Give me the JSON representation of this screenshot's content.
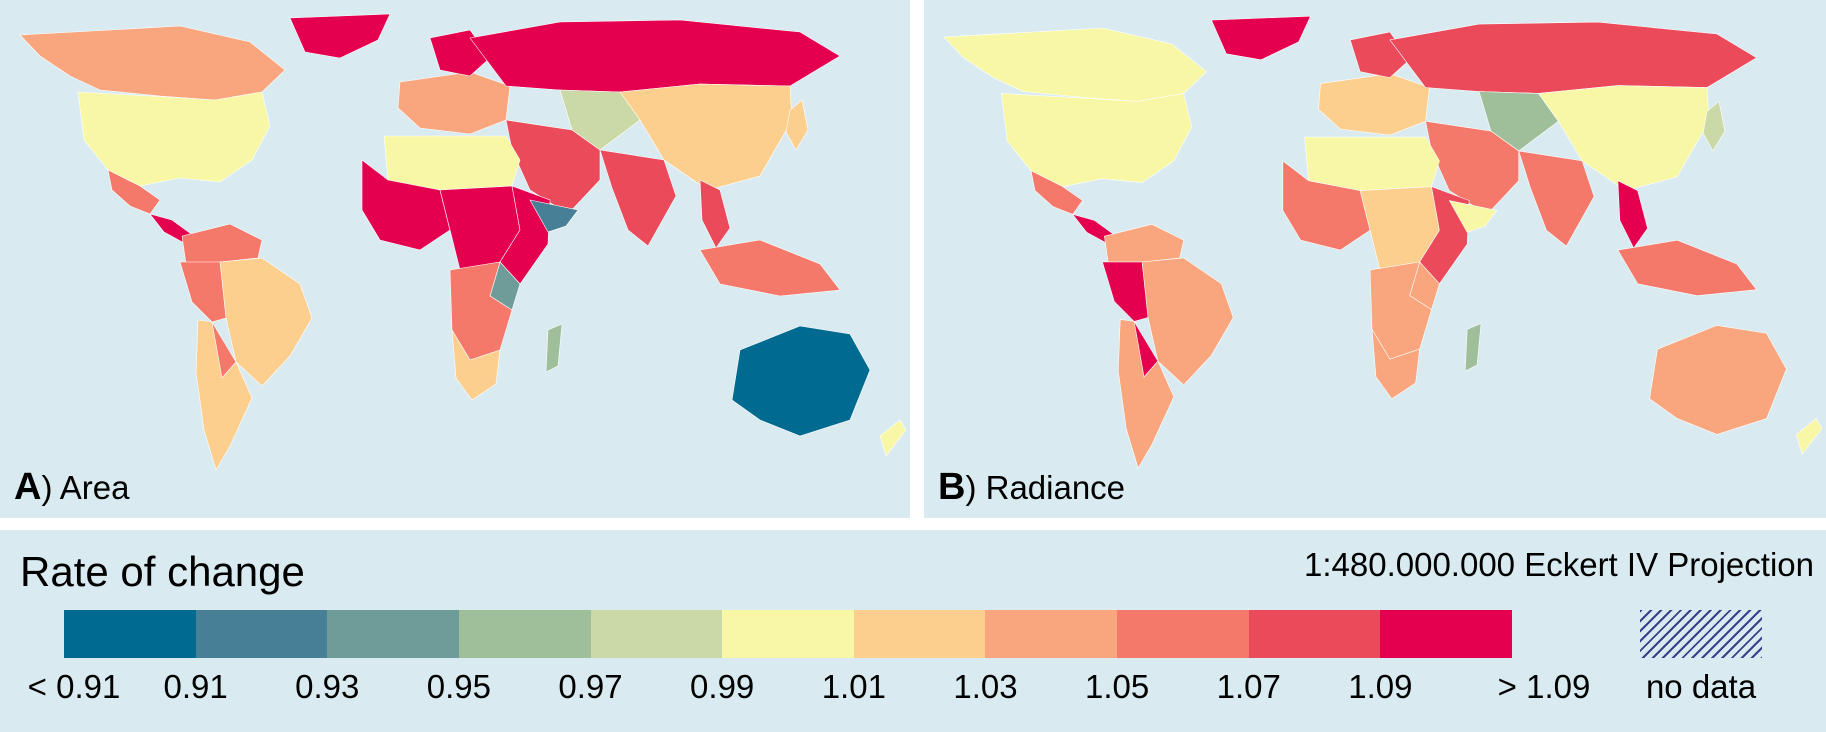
{
  "panels": [
    {
      "letter": "A",
      "title": ") Area",
      "region_classes": {
        "north_america_north": 7,
        "usa": 5,
        "mexico": 8,
        "central_america": 10,
        "greenland": 10,
        "south_america_north": 8,
        "brazil": 6,
        "peru": 8,
        "bolivia": 8,
        "chile_argentina": 6,
        "europe": 7,
        "scandinavia": 10,
        "russia": 10,
        "central_asia": 4,
        "middle_east": 9,
        "india": 9,
        "china": 6,
        "southeast_asia": 9,
        "indonesia": 8,
        "north_africa": 5,
        "west_africa": 10,
        "central_africa": 10,
        "east_africa": 10,
        "horn": 1,
        "southern_africa": 8,
        "south_africa": 6,
        "madagascar": 3,
        "tanzania": 2,
        "australia": 0,
        "new_zealand": 5,
        "japan": 6
      }
    },
    {
      "letter": "B",
      "title": ") Radiance",
      "region_classes": {
        "north_america_north": 5,
        "usa": 5,
        "mexico": 8,
        "central_america": 10,
        "greenland": 10,
        "south_america_north": 7,
        "brazil": 7,
        "peru": 10,
        "bolivia": 10,
        "chile_argentina": 7,
        "europe": 6,
        "scandinavia": 9,
        "russia": 9,
        "central_asia": 3,
        "middle_east": 8,
        "india": 8,
        "china": 5,
        "southeast_asia": 10,
        "indonesia": 8,
        "north_africa": 5,
        "west_africa": 8,
        "central_africa": 6,
        "east_africa": 9,
        "horn": 5,
        "southern_africa": 7,
        "south_africa": 7,
        "madagascar": 3,
        "tanzania": 7,
        "australia": 7,
        "new_zealand": 5,
        "japan": 4
      }
    }
  ],
  "legend": {
    "title": "Rate of change",
    "scale": "1:480.000.000  Eckert IV Projection",
    "colors": [
      "#006a91",
      "#467f96",
      "#6f9c98",
      "#9fbf9b",
      "#cbd9a6",
      "#f7f7a6",
      "#fccf8f",
      "#f9a57d",
      "#f5796b",
      "#eb4a5b",
      "#e5004f"
    ],
    "ticks": [
      "< 0.91",
      "0.91",
      "0.93",
      "0.95",
      "0.97",
      "0.99",
      "1.01",
      "1.03",
      "1.05",
      "1.07",
      "1.09",
      "> 1.09"
    ],
    "no_data_label": "no data"
  }
}
